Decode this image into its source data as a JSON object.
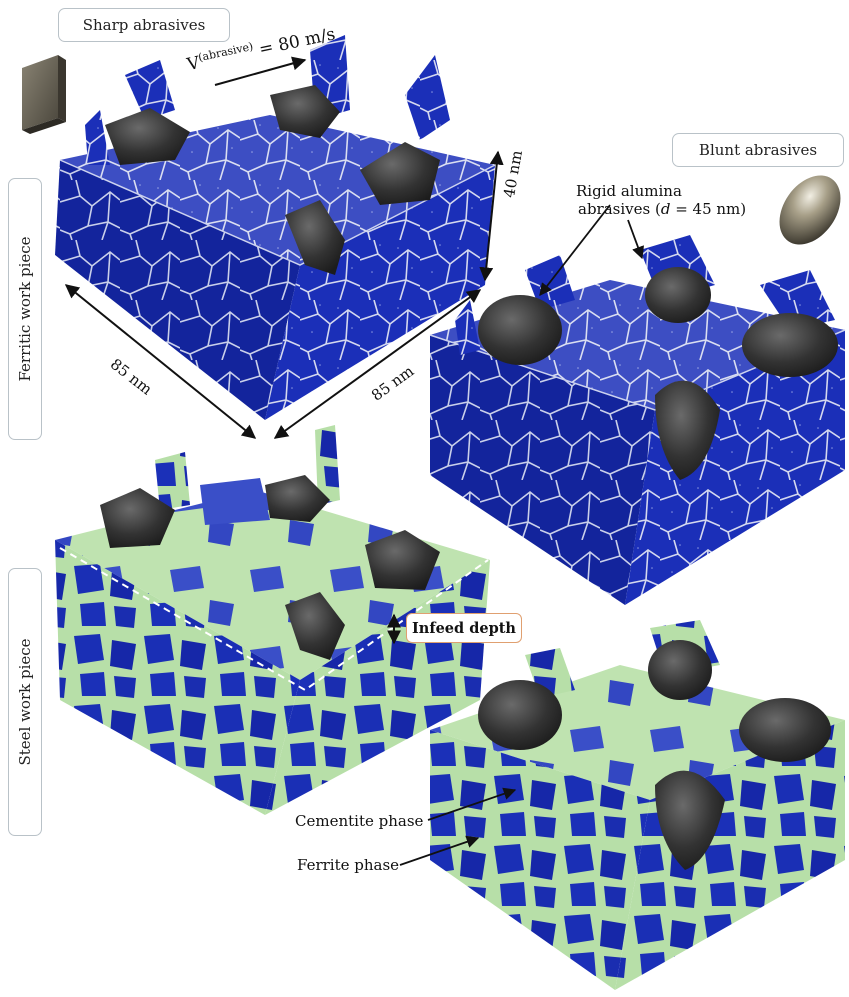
{
  "labels": {
    "sharp_abrasives": "Sharp abrasives",
    "blunt_abrasives": "Blunt abrasives",
    "ferritic_work_piece": "Ferritic work piece",
    "steel_work_piece": "Steel work piece",
    "velocity_v": "V",
    "velocity_sup": "(abrasive)",
    "velocity_value": " = 80 m/s",
    "rigid_alumina_line1": "Rigid alumina",
    "rigid_alumina_line2_pre": "abrasives (",
    "rigid_alumina_d": "d",
    "rigid_alumina_line2_post": " = 45 nm)",
    "dim_40nm": "40 nm",
    "dim_85nm_left": "85 nm",
    "dim_85nm_right": "85 nm",
    "infeed_depth": "Infeed depth",
    "cementite_phase": "Cementite phase",
    "ferrite_phase": "Ferrite phase"
  },
  "colors": {
    "ferrite_blue": "#1b2fb8",
    "ferrite_dark": "#0f1e8a",
    "grain_boundary": "#d8dcf0",
    "cementite_green": "#b7dfa8",
    "abrasive_dark": "#3a3a3a",
    "label_border": "#b9c2c8",
    "infeed_border": "#e0a070"
  }
}
